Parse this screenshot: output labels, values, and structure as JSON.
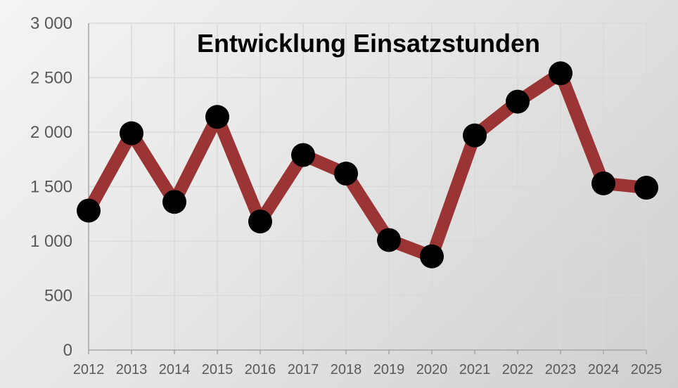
{
  "chart_data": {
    "type": "line",
    "title": "Entwicklung Einsatzstunden",
    "xlabel": "",
    "ylabel": "",
    "x": [
      "2012",
      "2013",
      "2014",
      "2015",
      "2016",
      "2017",
      "2018",
      "2019",
      "2020",
      "2021",
      "2022",
      "2023",
      "2024",
      "2025"
    ],
    "series": [
      {
        "values": [
          1280,
          1990,
          1360,
          2140,
          1180,
          1790,
          1620,
          1010,
          860,
          1970,
          2280,
          2540,
          1530,
          1490
        ]
      }
    ],
    "ylim": [
      0,
      3000
    ],
    "y_ticks": [
      "0",
      "500",
      "1 000",
      "1 500",
      "2 000",
      "2 500",
      "3 000"
    ],
    "y_tick_values": [
      0,
      500,
      1000,
      1500,
      2000,
      2500,
      3000
    ],
    "grid": true,
    "colors": {
      "line": "#9b3535",
      "marker": "#000000",
      "grid": "#d9d9d9",
      "axis": "#a6a6a6",
      "tick_text": "#595959",
      "title": "#000000"
    }
  }
}
